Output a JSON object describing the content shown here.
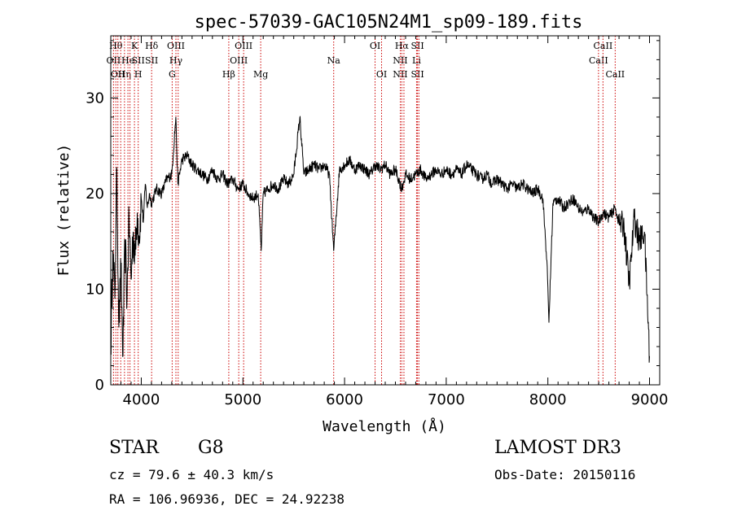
{
  "chart_data": {
    "type": "line",
    "title": "spec-57039-GAC105N24M1_sp09-189.fits",
    "xlabel": "Wavelength (Å)",
    "ylabel": "Flux (relative)",
    "xlim": [
      3700,
      9100
    ],
    "ylim": [
      0,
      36.5
    ],
    "xticks": [
      4000,
      5000,
      6000,
      7000,
      8000,
      9000
    ],
    "xtick_labels": [
      "4000",
      "5000",
      "6000",
      "7000",
      "8000",
      "9000"
    ],
    "yticks": [
      0,
      10,
      20,
      30
    ],
    "ytick_labels": [
      "0",
      "10",
      "20",
      "30"
    ],
    "grid": false,
    "line_color": "#000000",
    "marker_color": "#cc0000",
    "series": [
      {
        "name": "flux",
        "x": [
          3700,
          3720,
          3740,
          3760,
          3780,
          3800,
          3820,
          3840,
          3860,
          3880,
          3900,
          3920,
          3940,
          3960,
          3980,
          4000,
          4020,
          4040,
          4060,
          4080,
          4100,
          4150,
          4200,
          4250,
          4300,
          4340,
          4360,
          4400,
          4450,
          4500,
          4550,
          4600,
          4650,
          4700,
          4750,
          4800,
          4850,
          4900,
          4950,
          5000,
          5050,
          5100,
          5150,
          5180,
          5200,
          5250,
          5300,
          5350,
          5400,
          5450,
          5500,
          5560,
          5600,
          5650,
          5700,
          5750,
          5800,
          5850,
          5893,
          5950,
          6000,
          6050,
          6100,
          6150,
          6200,
          6250,
          6300,
          6350,
          6400,
          6450,
          6500,
          6563,
          6600,
          6650,
          6700,
          6750,
          6800,
          6850,
          6900,
          6950,
          7000,
          7050,
          7100,
          7150,
          7200,
          7250,
          7300,
          7350,
          7400,
          7450,
          7500,
          7550,
          7600,
          7650,
          7700,
          7750,
          7800,
          7850,
          7900,
          7950,
          7990,
          8010,
          8050,
          8100,
          8150,
          8200,
          8250,
          8300,
          8350,
          8400,
          8450,
          8498,
          8542,
          8600,
          8662,
          8700,
          8750,
          8800,
          8850,
          8900,
          8950,
          9000
        ],
        "y": [
          3.5,
          14.0,
          9.0,
          22.5,
          6.0,
          12.0,
          3.0,
          15.0,
          9.0,
          17.5,
          11.0,
          16.0,
          13.5,
          18.0,
          15.5,
          19.5,
          17.0,
          21.0,
          18.5,
          20.0,
          19.0,
          20.5,
          20.0,
          21.5,
          22.0,
          28.0,
          21.0,
          23.5,
          24.0,
          23.0,
          22.5,
          22.0,
          21.5,
          22.5,
          21.5,
          22.0,
          21.0,
          21.5,
          20.5,
          21.0,
          20.0,
          19.5,
          20.0,
          14.0,
          20.0,
          20.5,
          21.0,
          20.5,
          21.5,
          21.0,
          22.0,
          28.0,
          22.0,
          22.5,
          23.0,
          22.5,
          23.0,
          22.0,
          14.0,
          22.5,
          23.0,
          23.5,
          22.5,
          23.0,
          22.5,
          22.0,
          23.0,
          22.5,
          23.0,
          22.0,
          22.5,
          20.5,
          22.0,
          21.5,
          22.0,
          22.5,
          21.5,
          22.0,
          22.5,
          22.0,
          22.5,
          22.0,
          22.5,
          22.0,
          23.0,
          22.5,
          22.0,
          21.5,
          22.0,
          21.0,
          21.5,
          21.0,
          20.5,
          21.0,
          20.5,
          21.0,
          20.5,
          20.0,
          20.5,
          19.5,
          13.0,
          6.5,
          19.0,
          19.5,
          18.5,
          19.0,
          19.5,
          18.5,
          18.0,
          18.5,
          17.5,
          17.0,
          18.0,
          17.5,
          18.5,
          17.0,
          16.5,
          10.5,
          17.5,
          15.0,
          16.0,
          3.0
        ]
      }
    ],
    "lines": [
      {
        "wl": 3727,
        "rows": [
          1
        ],
        "labels": [
          "OII"
        ]
      },
      {
        "wl": 3750,
        "rows": [
          0
        ],
        "labels": [
          "Hθ"
        ]
      },
      {
        "wl": 3770,
        "rows": [
          2
        ],
        "labels": [
          "OII"
        ]
      },
      {
        "wl": 3798,
        "rows": [],
        "labels": []
      },
      {
        "wl": 3835,
        "rows": [
          2
        ],
        "labels": [
          "Hη"
        ]
      },
      {
        "wl": 3869,
        "rows": [
          1
        ],
        "labels": [
          "He"
        ]
      },
      {
        "wl": 3889,
        "rows": [],
        "labels": []
      },
      {
        "wl": 3933,
        "rows": [
          0
        ],
        "labels": [
          "K"
        ]
      },
      {
        "wl": 3970,
        "rows": [
          1,
          2
        ],
        "labels": [
          "SII",
          "H"
        ]
      },
      {
        "wl": 4102,
        "rows": [
          0,
          1
        ],
        "labels": [
          "Hδ",
          "SII"
        ]
      },
      {
        "wl": 4304,
        "rows": [
          2
        ],
        "labels": [
          "G"
        ]
      },
      {
        "wl": 4341,
        "rows": [
          0,
          1
        ],
        "labels": [
          "OIII",
          "Hγ"
        ]
      },
      {
        "wl": 4363,
        "rows": [],
        "labels": []
      },
      {
        "wl": 4861,
        "rows": [
          2
        ],
        "labels": [
          "Hβ"
        ]
      },
      {
        "wl": 4959,
        "rows": [
          1
        ],
        "labels": [
          "OIII"
        ]
      },
      {
        "wl": 5007,
        "rows": [
          0
        ],
        "labels": [
          "OIII"
        ]
      },
      {
        "wl": 5175,
        "rows": [
          2
        ],
        "labels": [
          "Mg"
        ]
      },
      {
        "wl": 5893,
        "rows": [
          1
        ],
        "labels": [
          "Na"
        ]
      },
      {
        "wl": 6300,
        "rows": [
          0
        ],
        "labels": [
          "OI"
        ]
      },
      {
        "wl": 6364,
        "rows": [
          2
        ],
        "labels": [
          "OI"
        ]
      },
      {
        "wl": 6548,
        "rows": [
          1,
          2
        ],
        "labels": [
          "NII",
          "NII"
        ]
      },
      {
        "wl": 6563,
        "rows": [
          0
        ],
        "labels": [
          "Hα"
        ]
      },
      {
        "wl": 6584,
        "rows": [],
        "labels": []
      },
      {
        "wl": 6708,
        "rows": [
          1
        ],
        "labels": [
          "Li"
        ]
      },
      {
        "wl": 6717,
        "rows": [
          0,
          2
        ],
        "labels": [
          "SII",
          "SII"
        ]
      },
      {
        "wl": 6731,
        "rows": [],
        "labels": []
      },
      {
        "wl": 8498,
        "rows": [
          1
        ],
        "labels": [
          "CaII"
        ]
      },
      {
        "wl": 8542,
        "rows": [
          0
        ],
        "labels": [
          "CaII"
        ]
      },
      {
        "wl": 8662,
        "rows": [
          2
        ],
        "labels": [
          "CaII"
        ]
      }
    ]
  },
  "info": {
    "class": "STAR",
    "subclass": "G8",
    "survey": "LAMOST DR3",
    "cz": "cz = 79.6 ± 40.3 km/s",
    "obs_date": "Obs-Date: 20150116",
    "radec": "RA = 106.96936, DEC =  24.92238"
  }
}
